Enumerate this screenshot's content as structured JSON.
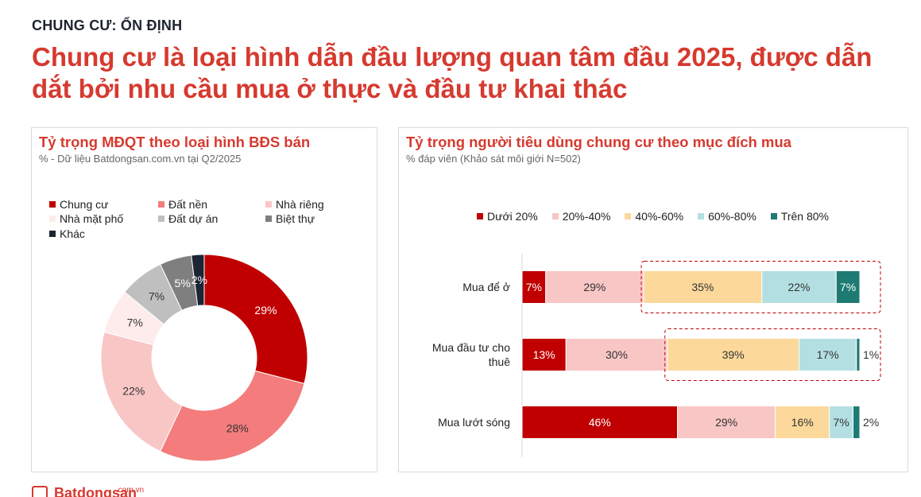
{
  "header": {
    "kicker": "CHUNG CƯ: ỔN ĐỊNH",
    "headline": "Chung cư là loại hình dẫn đầu lượng quan tâm đầu 2025, được dẫn dắt bởi nhu cầu mua ở thực và đầu tư khai thác"
  },
  "footer": {
    "logo_text": "Batdongsan",
    "logo_sup": ".com.vn"
  },
  "chart_data": [
    {
      "type": "pie",
      "title": "Tỷ trọng MĐQT theo loại hình BĐS bán",
      "subtitle": "% - Dữ liệu Batdongsan.com.vn tại Q2/2025",
      "donut": true,
      "legend_position": "top",
      "slices": [
        {
          "label": "Chung cư",
          "value": 29,
          "value_label": "29%",
          "color": "#c00000"
        },
        {
          "label": "Đất nền",
          "value": 28,
          "value_label": "28%",
          "color": "#f47c7c"
        },
        {
          "label": "Nhà riêng",
          "value": 22,
          "value_label": "22%",
          "color": "#f9c6c6"
        },
        {
          "label": "Nhà mặt phố",
          "value": 7,
          "value_label": "7%",
          "color": "#fdeceb"
        },
        {
          "label": "Đất dự án",
          "value": 7,
          "value_label": "7%",
          "color": "#bfbfbf"
        },
        {
          "label": "Biệt thự",
          "value": 5,
          "value_label": "5%",
          "color": "#7f7f7f"
        },
        {
          "label": "Khác",
          "value": 2,
          "value_label": "2%",
          "color": "#1c2533"
        }
      ]
    },
    {
      "type": "bar",
      "orientation": "horizontal",
      "stacked": true,
      "title": "Tỷ trọng người tiêu dùng chung cư theo mục đích mua",
      "subtitle": "% đáp viên (Khảo sát môi giới N=502)",
      "legend_position": "top",
      "categories": [
        "Mua để ở",
        "Mua đầu tư cho thuê",
        "Mua lướt sóng"
      ],
      "series": [
        {
          "name": "Dưới 20%",
          "color": "#c00000",
          "values": [
            7,
            13,
            46
          ]
        },
        {
          "name": "20%-40%",
          "color": "#f9c6c6",
          "values": [
            29,
            30,
            29
          ]
        },
        {
          "name": "40%-60%",
          "color": "#fcd89b",
          "values": [
            35,
            39,
            16
          ]
        },
        {
          "name": "60%-80%",
          "color": "#b4dfe2",
          "values": [
            22,
            17,
            7
          ]
        },
        {
          "name": "Trên 80%",
          "color": "#1e7b74",
          "values": [
            7,
            1,
            2
          ]
        }
      ],
      "highlight_categories": [
        "Mua để ở",
        "Mua đầu tư cho thuê"
      ]
    }
  ]
}
